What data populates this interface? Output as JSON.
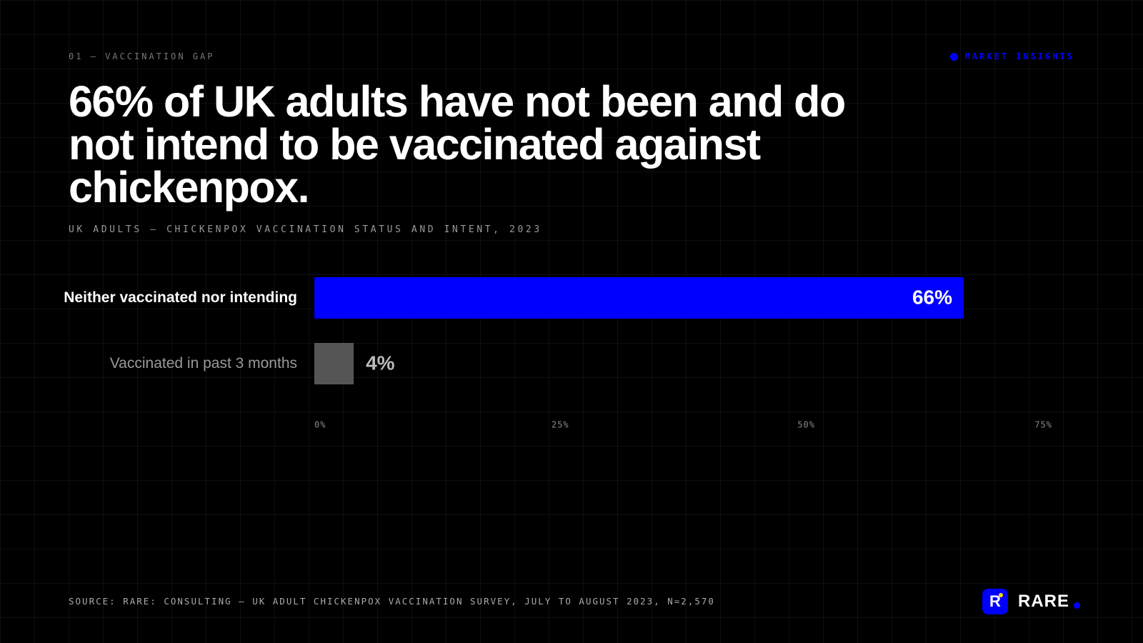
{
  "eyebrow": "01 — VACCINATION GAP",
  "tag": "MARKET INSIGHTS",
  "brand": {
    "logo": "R",
    "name": "RARE"
  },
  "chart_data": {
    "type": "bar",
    "orientation": "horizontal",
    "title": "66% of UK adults have not been and do not intend to be vaccinated against chickenpox.",
    "subtitle": "UK ADULTS — CHICKENPOX VACCINATION STATUS AND INTENT, 2023",
    "source": "SOURCE: RARE: CONSULTING — UK ADULT CHICKENPOX VACCINATION SURVEY, JULY TO AUGUST 2023, N=2,570",
    "categories": [
      "Neither vaccinated nor intending",
      "Vaccinated in past 3 months"
    ],
    "values": [
      66,
      4
    ],
    "value_labels": [
      "66%",
      "4%"
    ],
    "colors": [
      "#0000ff",
      "#555555"
    ],
    "label_colors": [
      "#ffffff",
      "#999999"
    ],
    "xlim": [
      0,
      75
    ],
    "xticks": [
      {
        "value": 0,
        "label": "0%"
      },
      {
        "value": 25,
        "label": "25%"
      },
      {
        "value": 50,
        "label": "50%"
      },
      {
        "value": 75,
        "label": "75%"
      }
    ]
  }
}
